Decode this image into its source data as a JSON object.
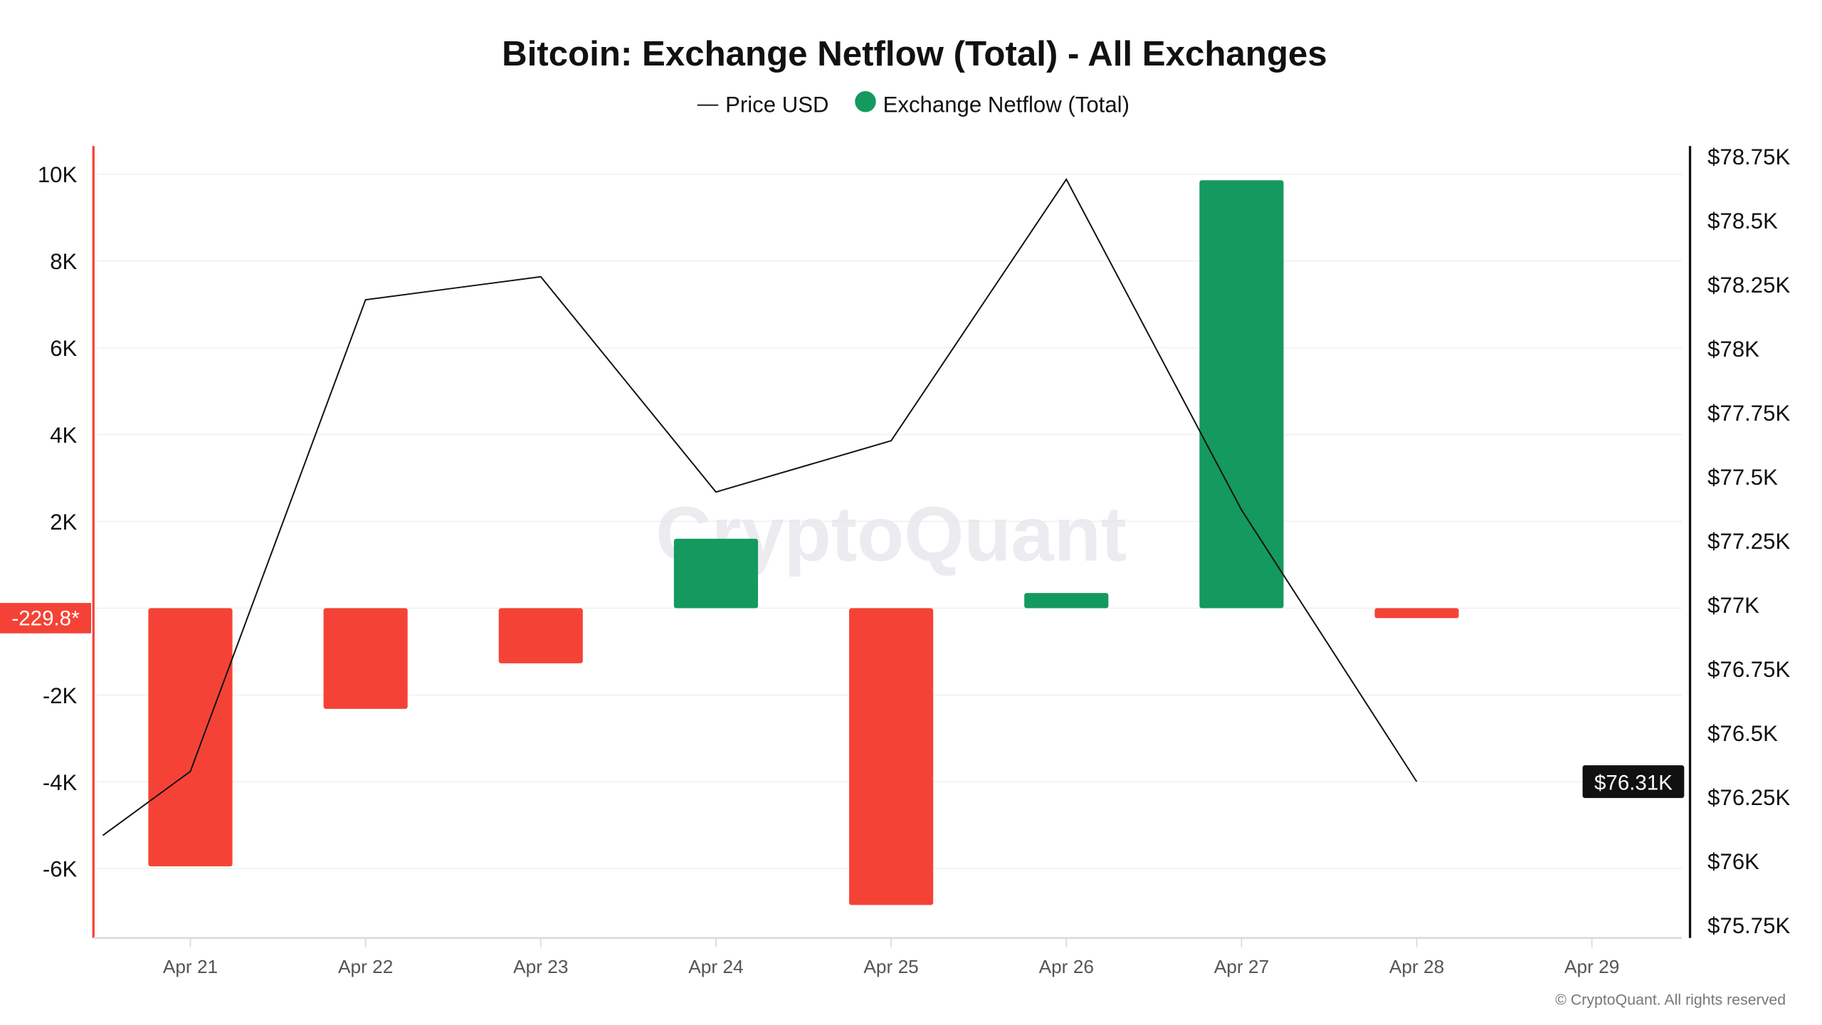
{
  "chart_data": {
    "type": "bar",
    "title": "Bitcoin: Exchange Netflow (Total) - All Exchanges",
    "legend": {
      "placement": "top-center",
      "items": [
        {
          "label": "Price USD",
          "marker": "line",
          "color": "#111111"
        },
        {
          "label": "Exchange Netflow (Total)",
          "marker": "dot",
          "color": "#14995f"
        }
      ]
    },
    "categories": [
      "Apr 21",
      "Apr 22",
      "Apr 23",
      "Apr 24",
      "Apr 25",
      "Apr 26",
      "Apr 27",
      "Apr 28",
      "Apr 29"
    ],
    "x_tick_labels": [
      "Apr 21",
      "Apr 22",
      "Apr 23",
      "Apr 24",
      "Apr 25",
      "Apr 26",
      "Apr 27",
      "Apr 28",
      "Apr 29"
    ],
    "series": [
      {
        "name": "Exchange Netflow (Total)",
        "type": "bar",
        "axis": "left",
        "x": [
          "Apr 21",
          "Apr 22",
          "Apr 23",
          "Apr 24",
          "Apr 25",
          "Apr 26",
          "Apr 27",
          "Apr 28"
        ],
        "values": [
          -5950,
          -2320,
          -1270,
          1600,
          -6840,
          350,
          9860,
          -229.8
        ],
        "positive_color": "#14995f",
        "negative_color": "#f44336"
      },
      {
        "name": "Price USD",
        "type": "line",
        "axis": "right",
        "color": "#111111",
        "x": [
          "Apr 20",
          "Apr 21",
          "Apr 22",
          "Apr 23",
          "Apr 24",
          "Apr 25",
          "Apr 26",
          "Apr 27",
          "Apr 28"
        ],
        "values": [
          75850,
          76350,
          78190,
          78280,
          77440,
          77640,
          78660,
          77370,
          76310
        ]
      }
    ],
    "x_range": [
      "Apr 20 12:00",
      "Apr 29 12:00"
    ],
    "y_left": {
      "ticks": [
        10000,
        8000,
        6000,
        4000,
        2000,
        -2000,
        -4000,
        -6000
      ],
      "tick_labels": [
        "10K",
        "8K",
        "6K",
        "4K",
        "2K",
        "-2K",
        "-4K",
        "-6K"
      ],
      "range": [
        -7600,
        10650
      ],
      "axis_color": "#f44336"
    },
    "y_right": {
      "ticks": [
        78750,
        78500,
        78250,
        78000,
        77750,
        77500,
        77250,
        77000,
        76750,
        76500,
        76250,
        76000,
        75750
      ],
      "tick_labels": [
        "$78.75K",
        "$78.5K",
        "$78.25K",
        "$78K",
        "$77.75K",
        "$77.5K",
        "$77.25K",
        "$77K",
        "$76.75K",
        "$76.5K",
        "$76.25K",
        "$76K",
        "$75.75K"
      ],
      "range": [
        75700,
        78790
      ],
      "axis_color": "#111111"
    },
    "grid": true,
    "last_value_labels": {
      "netflow": {
        "text": "-229.8*",
        "value": -229.8,
        "color": "#f44336"
      },
      "price": {
        "text": "$76.31K",
        "value": 76310,
        "color": "#111111"
      }
    },
    "watermark": "CryptoQuant",
    "copyright": "© CryptoQuant. All rights reserved"
  }
}
